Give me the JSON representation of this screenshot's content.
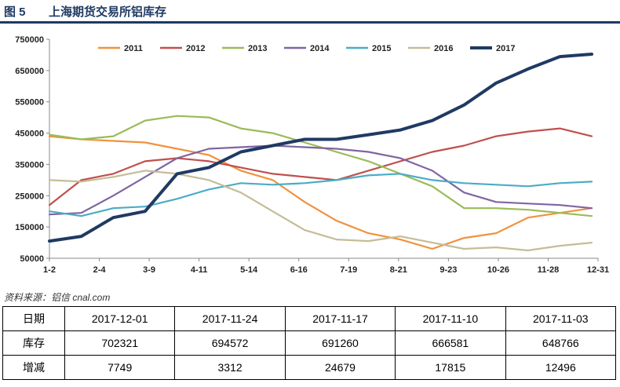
{
  "figure": {
    "number": "图 5",
    "title": "上海期货交易所铝库存"
  },
  "source": "资料来源：铝信 cnal.com",
  "colors": {
    "2011": "#f0923e",
    "2012": "#c0504d",
    "2013": "#9bbb59",
    "2014": "#8064a2",
    "2015": "#4bacc6",
    "2016": "#c4bd97",
    "2017": "#1f3a63"
  },
  "chart_data": {
    "type": "line",
    "x_ticks": [
      "1-2",
      "2-4",
      "3-9",
      "4-11",
      "5-14",
      "6-16",
      "7-19",
      "8-21",
      "9-23",
      "10-26",
      "11-28",
      "12-31"
    ],
    "ylim": [
      50000,
      750000
    ],
    "y_ticks": [
      50000,
      150000,
      250000,
      350000,
      450000,
      550000,
      650000,
      750000
    ],
    "legend_position": "top",
    "grid": false,
    "series": [
      {
        "name": "2011",
        "values": [
          440000,
          430000,
          425000,
          420000,
          400000,
          380000,
          330000,
          300000,
          230000,
          170000,
          130000,
          110000,
          80000,
          115000,
          130000,
          180000,
          195000,
          210000
        ]
      },
      {
        "name": "2012",
        "values": [
          220000,
          300000,
          320000,
          360000,
          370000,
          360000,
          340000,
          320000,
          310000,
          300000,
          330000,
          360000,
          390000,
          410000,
          440000,
          455000,
          465000,
          440000
        ]
      },
      {
        "name": "2013",
        "values": [
          445000,
          430000,
          440000,
          490000,
          505000,
          500000,
          465000,
          450000,
          420000,
          390000,
          360000,
          320000,
          280000,
          210000,
          210000,
          205000,
          195000,
          185000
        ]
      },
      {
        "name": "2014",
        "values": [
          190000,
          195000,
          250000,
          310000,
          370000,
          400000,
          405000,
          410000,
          405000,
          400000,
          390000,
          370000,
          330000,
          260000,
          230000,
          225000,
          220000,
          210000
        ]
      },
      {
        "name": "2015",
        "values": [
          200000,
          185000,
          210000,
          215000,
          240000,
          270000,
          290000,
          285000,
          290000,
          300000,
          315000,
          320000,
          300000,
          290000,
          285000,
          280000,
          290000,
          295000
        ]
      },
      {
        "name": "2016",
        "values": [
          300000,
          295000,
          310000,
          330000,
          320000,
          300000,
          260000,
          200000,
          140000,
          110000,
          105000,
          120000,
          100000,
          80000,
          85000,
          75000,
          90000,
          100000
        ]
      },
      {
        "name": "2017",
        "values": [
          105000,
          120000,
          180000,
          200000,
          320000,
          340000,
          390000,
          410000,
          430000,
          430000,
          445000,
          460000,
          490000,
          540000,
          610000,
          655000,
          694572,
          702321
        ]
      }
    ]
  },
  "table": {
    "rows": [
      {
        "label": "日期",
        "cells": [
          "2017-12-01",
          "2017-11-24",
          "2017-11-17",
          "2017-11-10",
          "2017-11-03"
        ]
      },
      {
        "label": "库存",
        "cells": [
          "702321",
          "694572",
          "691260",
          "666581",
          "648766"
        ]
      },
      {
        "label": "增减",
        "cells": [
          "7749",
          "3312",
          "24679",
          "17815",
          "12496"
        ]
      }
    ]
  }
}
